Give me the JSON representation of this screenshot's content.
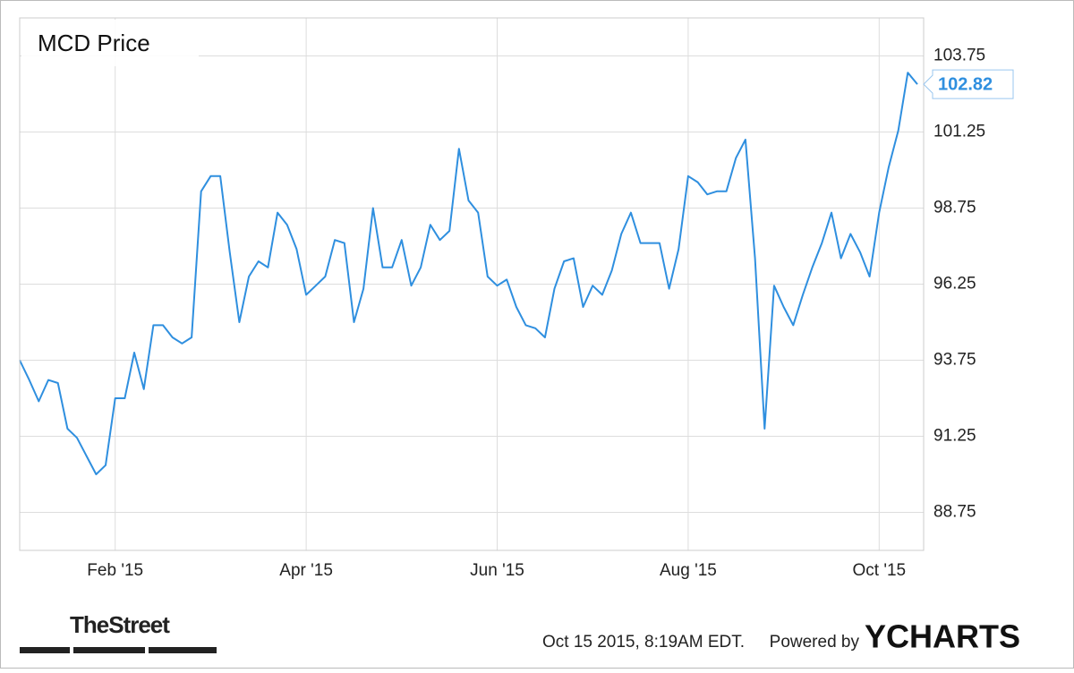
{
  "chart_data": {
    "type": "line",
    "title": "MCD Price",
    "categories": [
      null,
      null,
      null,
      null,
      null,
      null,
      null,
      null,
      null,
      null,
      "Feb '15",
      null,
      null,
      null,
      null,
      null,
      null,
      null,
      null,
      null,
      null,
      null,
      null,
      null,
      null,
      null,
      null,
      null,
      null,
      null,
      "Apr '15",
      null,
      null,
      null,
      null,
      null,
      null,
      null,
      null,
      null,
      null,
      null,
      null,
      null,
      null,
      null,
      null,
      null,
      null,
      null,
      "Jun '15",
      null,
      null,
      null,
      null,
      null,
      null,
      null,
      null,
      null,
      null,
      null,
      null,
      null,
      null,
      null,
      null,
      null,
      null,
      null,
      "Aug '15",
      null,
      null,
      null,
      null,
      null,
      null,
      null,
      null,
      null,
      null,
      null,
      null,
      null,
      null,
      null,
      null,
      null,
      null,
      null,
      "Oct '15",
      null,
      null,
      null,
      null
    ],
    "series": [
      {
        "name": "MCD Price",
        "color": "#2f8fdf",
        "values": [
          93.75,
          93.1,
          92.4,
          93.1,
          93.0,
          91.5,
          91.2,
          90.6,
          90.0,
          90.3,
          92.5,
          92.5,
          94.0,
          92.8,
          94.9,
          94.9,
          94.5,
          94.3,
          94.5,
          99.3,
          99.8,
          99.8,
          97.3,
          95.0,
          96.5,
          97.0,
          96.8,
          98.6,
          98.2,
          97.4,
          95.9,
          96.2,
          96.5,
          97.7,
          97.6,
          95.0,
          96.1,
          98.75,
          96.8,
          96.8,
          97.7,
          96.2,
          96.8,
          98.2,
          97.7,
          98.0,
          100.7,
          99.0,
          98.6,
          96.5,
          96.2,
          96.4,
          95.5,
          94.9,
          94.8,
          94.5,
          96.1,
          97.0,
          97.1,
          95.5,
          96.2,
          95.9,
          96.7,
          97.9,
          98.6,
          97.6,
          97.6,
          97.6,
          96.1,
          97.4,
          99.8,
          99.6,
          99.2,
          99.3,
          99.3,
          100.4,
          101.0,
          97.1,
          91.5,
          96.2,
          95.5,
          94.9,
          95.9,
          96.8,
          97.6,
          98.6,
          97.1,
          97.9,
          97.3,
          96.5,
          98.6,
          100.1,
          101.3,
          103.2,
          102.82
        ]
      }
    ],
    "ylim": [
      87.5,
      105
    ],
    "yticks": [
      88.75,
      91.25,
      93.75,
      96.25,
      98.75,
      101.25,
      103.75
    ],
    "grid": true
  },
  "footer": {
    "brand": "TheStreet",
    "timestamp": "Oct 15 2015, 8:19AM EDT.",
    "powered": "Powered by",
    "logo": "YCHARTS"
  }
}
